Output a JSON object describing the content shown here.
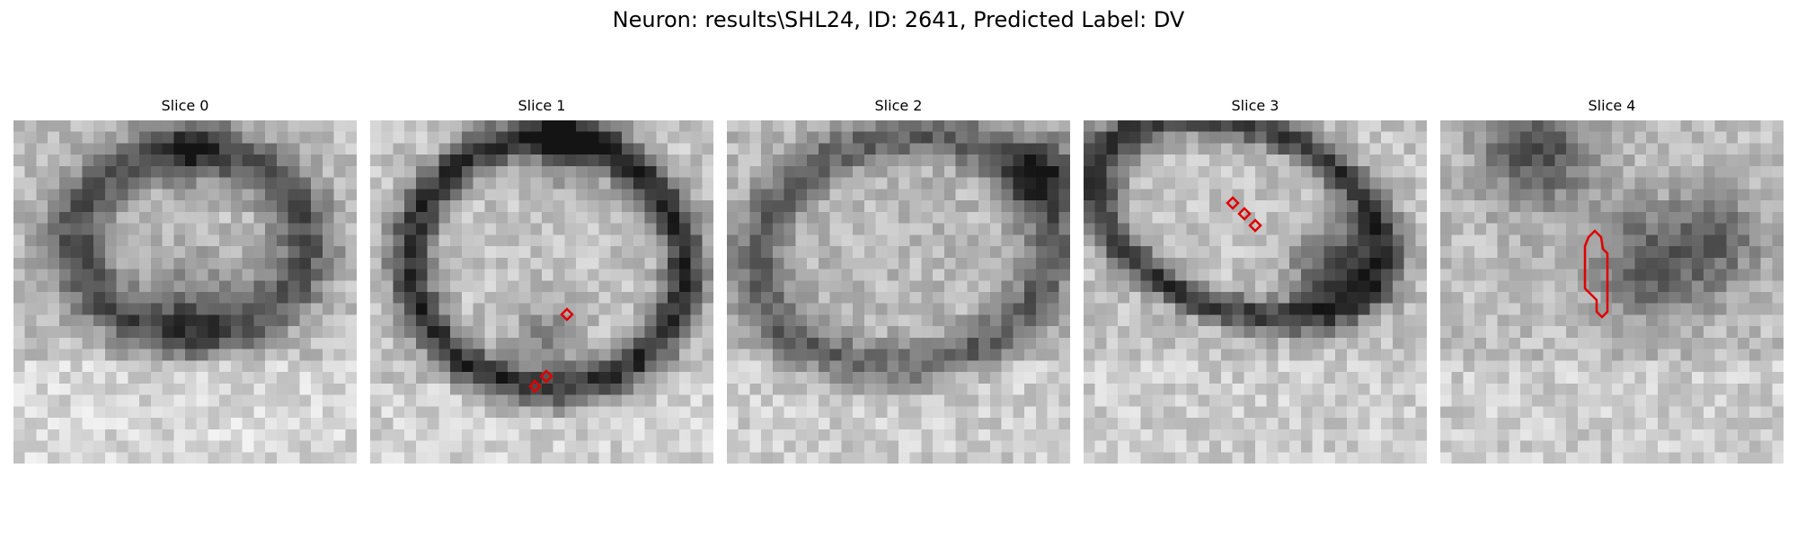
{
  "figure": {
    "title": "Neuron: results\\SHL24, ID: 2641, Predicted Label: DV",
    "contour_color": "#e00000"
  },
  "slices": [
    {
      "title": "Slice 0",
      "contours": []
    },
    {
      "title": "Slice 1",
      "contours": [
        "cell-contour",
        "cell-contour",
        "cell-contour"
      ]
    },
    {
      "title": "Slice 2",
      "contours": []
    },
    {
      "title": "Slice 3",
      "contours": [
        "cell-contour",
        "cell-contour",
        "cell-contour"
      ]
    },
    {
      "title": "Slice 4",
      "contours": [
        "cell-contour"
      ]
    }
  ]
}
